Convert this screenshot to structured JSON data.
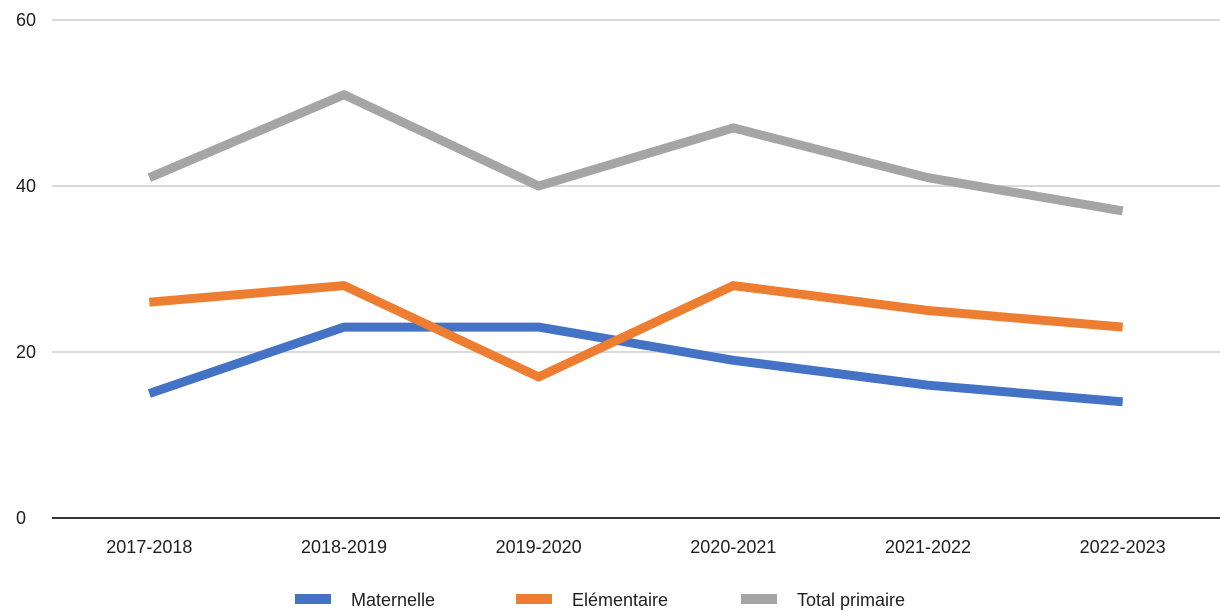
{
  "chart_data": {
    "type": "line",
    "title": "",
    "xlabel": "",
    "ylabel": "",
    "categories": [
      "2017-2018",
      "2018-2019",
      "2019-2020",
      "2020-2021",
      "2021-2022",
      "2022-2023"
    ],
    "ylim": [
      0,
      60
    ],
    "yticks": [
      0,
      20,
      40,
      60
    ],
    "grid": true,
    "legend_position": "bottom",
    "series": [
      {
        "name": "Maternelle",
        "color": "#4472C4",
        "values": [
          15,
          23,
          23,
          19,
          16,
          14
        ]
      },
      {
        "name": "Elémentaire",
        "color": "#ED7D31",
        "values": [
          26,
          28,
          17,
          28,
          25,
          23
        ]
      },
      {
        "name": "Total primaire",
        "color": "#A5A5A5",
        "values": [
          41,
          51,
          40,
          47,
          41,
          37
        ]
      }
    ]
  }
}
